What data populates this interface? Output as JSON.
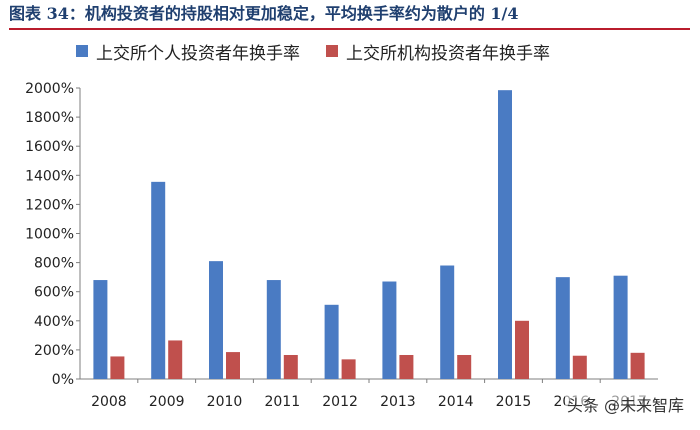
{
  "figure_title": "图表 34：机构投资者的持股相对更加稳定，平均换手率约为散户的 1/4",
  "watermark": "头条 @未来智库",
  "chart_data": {
    "type": "bar",
    "categories": [
      "2008",
      "2009",
      "2010",
      "2011",
      "2012",
      "2013",
      "2014",
      "2015",
      "2016",
      "2017"
    ],
    "series": [
      {
        "name": "上交所个人投资者年换手率",
        "color": "#4a7bc3",
        "values": [
          680,
          1355,
          810,
          680,
          510,
          670,
          780,
          1985,
          700,
          710
        ]
      },
      {
        "name": "上交所机构投资者年换手率",
        "color": "#c0504d",
        "values": [
          155,
          265,
          185,
          165,
          135,
          165,
          165,
          400,
          160,
          180
        ]
      }
    ],
    "ylim": [
      0,
      2000
    ],
    "y_ticks": [
      "0%",
      "200%",
      "400%",
      "600%",
      "800%",
      "1000%",
      "1200%",
      "1400%",
      "1600%",
      "1800%",
      "2000%"
    ],
    "legend_position": "top",
    "grid": false
  }
}
